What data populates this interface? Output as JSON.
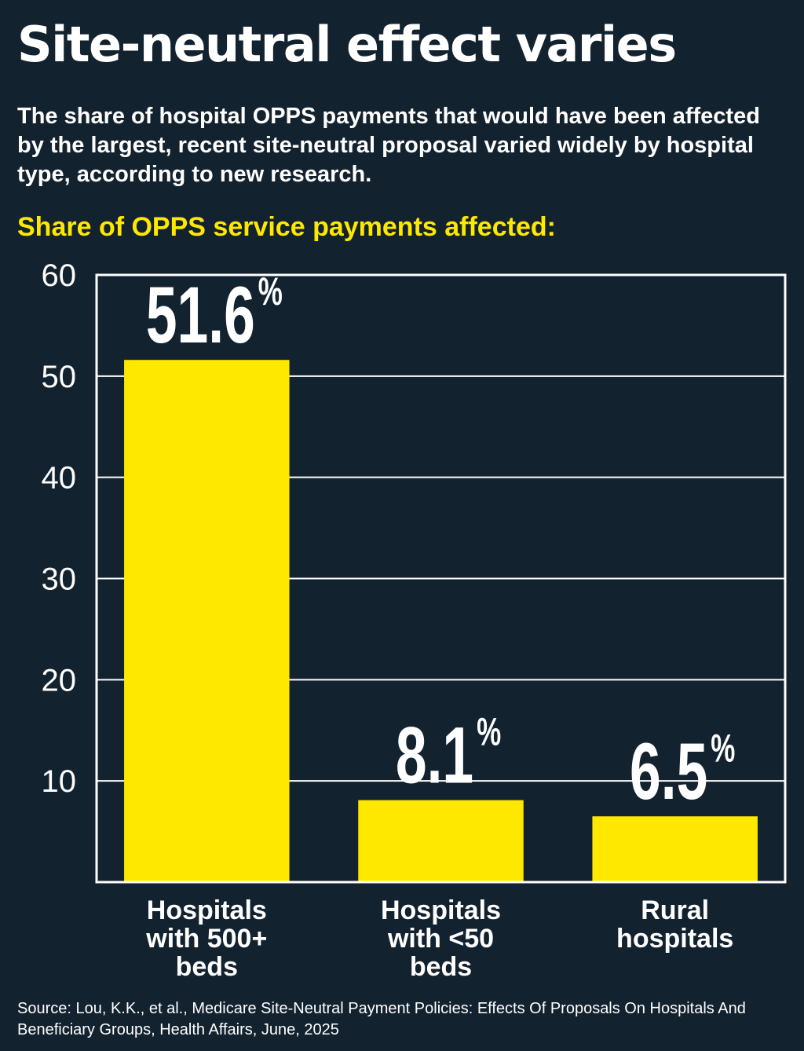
{
  "header": {
    "title": "Site-neutral effect varies",
    "subtitle": "The share of hospital OPPS payments that would have been affected by the largest, recent site-neutral proposal varied widely by hospital type, according to new research.",
    "chart_heading": "Share of OPPS service payments affected:"
  },
  "chart_data": {
    "type": "bar",
    "title": "Share of OPPS service payments affected:",
    "categories": [
      [
        "Hospitals",
        "with 500+",
        "beds"
      ],
      [
        "Hospitals",
        "with <50",
        "beds"
      ],
      [
        "Rural",
        "hospitals"
      ]
    ],
    "values": [
      51.6,
      8.1,
      6.5
    ],
    "data_labels": [
      "51.6",
      "8.1",
      "6.5"
    ],
    "label_suffix": "%",
    "yticks": [
      10,
      20,
      30,
      40,
      50,
      60
    ],
    "ylim": [
      0,
      60
    ],
    "xlabel": "",
    "ylabel": "",
    "grid": true,
    "bar_color": "#ffe800"
  },
  "footer": {
    "source": "Source: Lou, K.K., et al., Medicare Site-Neutral Payment Policies: Effects Of Proposals On Hospitals And Beneficiary Groups, Health Affairs, June, 2025"
  }
}
